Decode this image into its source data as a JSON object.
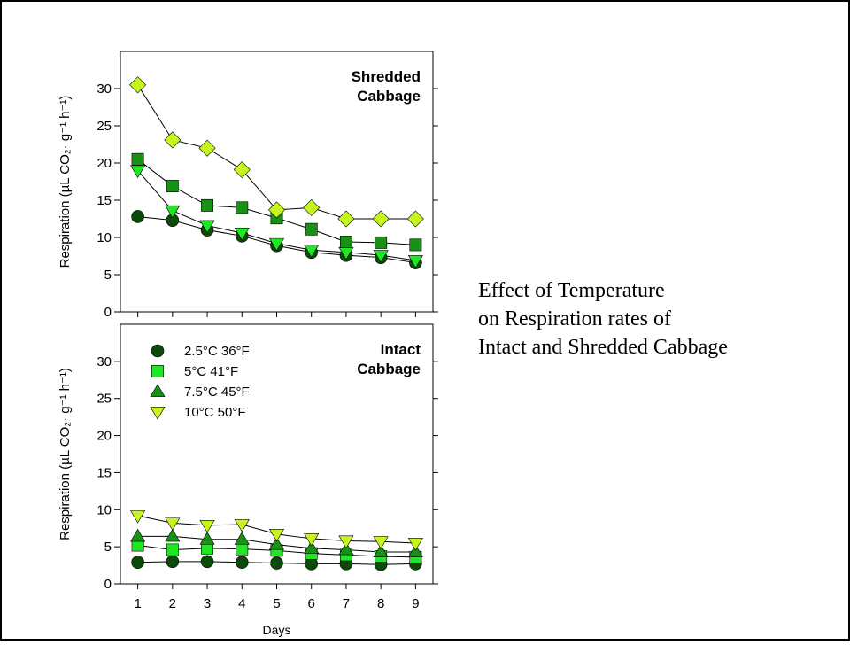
{
  "caption": {
    "line1": "Effect of Temperature",
    "line2": "on Respiration rates of",
    "line3": "Intact and Shredded Cabbage"
  },
  "colors": {
    "s25": "#0b4a08",
    "s5": "#1ee821",
    "s75": "#179215",
    "s10": "#c6f51e",
    "frame": "#000000"
  },
  "chart_data": [
    {
      "type": "line",
      "title": "Shredded Cabbage",
      "title_lines": [
        "Shredded",
        "Cabbage"
      ],
      "x": [
        1,
        2,
        3,
        4,
        5,
        6,
        7,
        8,
        9
      ],
      "xlim": [
        0.5,
        9.5
      ],
      "ylim": [
        0,
        35
      ],
      "yticks": [
        0,
        5,
        10,
        15,
        20,
        25,
        30
      ],
      "ylabel": "Respiration  (µL CO₂· g⁻¹ h⁻¹)",
      "series": [
        {
          "name": "2.5°C  36°F",
          "marker": "circle",
          "color": "#0b4a08",
          "values": [
            12.8,
            12.3,
            11.0,
            10.2,
            8.9,
            8.0,
            7.6,
            7.3,
            6.6
          ]
        },
        {
          "name": "5°C  41°F",
          "marker": "triangle-down",
          "color": "#1ee821",
          "values": [
            19.0,
            13.6,
            11.6,
            10.6,
            9.2,
            8.3,
            8.0,
            7.6,
            6.9
          ]
        },
        {
          "name": "7.5°C  45°F",
          "marker": "square",
          "color": "#179215",
          "values": [
            20.5,
            16.9,
            14.3,
            14.0,
            12.6,
            11.1,
            9.4,
            9.3,
            9.0
          ]
        },
        {
          "name": "10°C  50°F",
          "marker": "diamond",
          "color": "#c6f51e",
          "values": [
            30.5,
            23.1,
            22.0,
            19.1,
            13.7,
            14.0,
            12.5,
            12.5,
            12.5
          ]
        }
      ]
    },
    {
      "type": "line",
      "title": "Intact Cabbage",
      "title_lines": [
        "Intact",
        "Cabbage"
      ],
      "x": [
        1,
        2,
        3,
        4,
        5,
        6,
        7,
        8,
        9
      ],
      "xticks": [
        "1",
        "2",
        "3",
        "4",
        "5",
        "6",
        "7",
        "8",
        "9"
      ],
      "xlim": [
        0.5,
        9.5
      ],
      "ylim": [
        0,
        35
      ],
      "yticks": [
        0,
        5,
        10,
        15,
        20,
        25,
        30
      ],
      "xlabel": "Days",
      "ylabel": "Respiration  (µL CO₂· g⁻¹ h⁻¹)",
      "legend": "top-left",
      "series": [
        {
          "name": "2.5°C  36°F",
          "marker": "circle",
          "color": "#0b4a08",
          "values": [
            2.9,
            3.0,
            3.0,
            2.9,
            2.8,
            2.7,
            2.7,
            2.6,
            2.7
          ]
        },
        {
          "name": "5°C  41°F",
          "marker": "square",
          "color": "#1ee821",
          "values": [
            5.2,
            4.6,
            4.8,
            4.7,
            4.5,
            4.1,
            3.9,
            3.7,
            3.6
          ]
        },
        {
          "name": "7.5°C  45°F",
          "marker": "triangle-up",
          "color": "#179215",
          "values": [
            6.4,
            6.4,
            6.0,
            6.0,
            5.3,
            4.8,
            4.6,
            4.3,
            4.3
          ]
        },
        {
          "name": "10°C  50°F",
          "marker": "triangle-down",
          "color": "#c6f51e",
          "values": [
            9.2,
            8.2,
            7.9,
            8.0,
            6.7,
            6.1,
            5.8,
            5.7,
            5.5
          ]
        }
      ]
    }
  ]
}
